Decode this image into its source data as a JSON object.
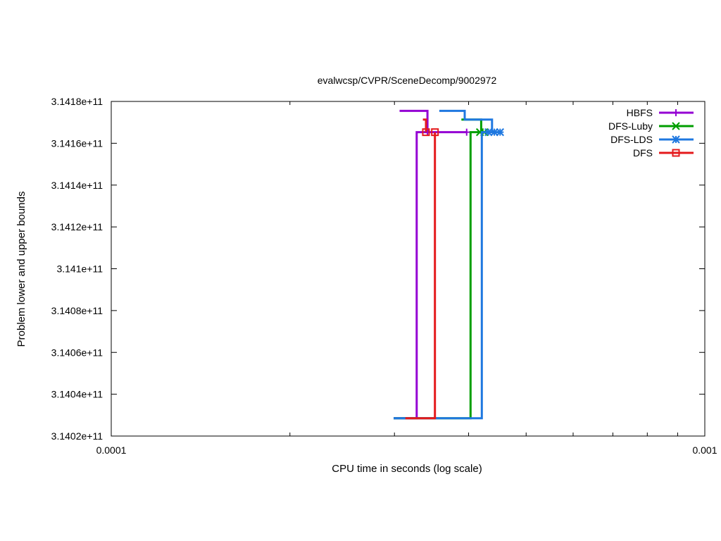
{
  "chart_data": {
    "type": "line",
    "title": "evalwcsp/CVPR/SceneDecomp/9002972",
    "xlabel": "CPU time in seconds (log scale)",
    "ylabel": "Problem lower and upper bounds",
    "xscale": "log",
    "xlim": [
      0.0001,
      0.001
    ],
    "ylim": [
      314020000000,
      314180000000
    ],
    "x_tick_labels": [
      "0.0001",
      "0.001"
    ],
    "x_ticks": [
      0.0001,
      0.001
    ],
    "y_ticks": [
      314020000000,
      314040000000,
      314060000000,
      314080000000,
      314100000000,
      314120000000,
      314140000000,
      314160000000,
      314180000000
    ],
    "y_tick_labels": [
      "3.1402e+11",
      "3.1404e+11",
      "3.1406e+11",
      "3.1408e+11",
      "3.141e+11",
      "3.1412e+11",
      "3.1414e+11",
      "3.1416e+11",
      "3.1418e+11"
    ],
    "grid": false,
    "legend_position": "top-right",
    "series": [
      {
        "name": "HBFS",
        "color": "#9400d3",
        "marker": "plus",
        "upper": [
          [
            0.000306,
            314175500000
          ],
          [
            0.000341,
            314175500000
          ],
          [
            0.000341,
            314165300000
          ]
        ],
        "lower": [
          [
            0.000299,
            314028500000
          ],
          [
            0.000327,
            314028500000
          ],
          [
            0.000327,
            314165300000
          ],
          [
            0.000397,
            314165300000
          ]
        ],
        "markers": [
          [
            0.000341,
            314165300000
          ],
          [
            0.000397,
            314165300000
          ]
        ]
      },
      {
        "name": "DFS-Luby",
        "color": "#009e00",
        "marker": "x",
        "upper": [
          [
            0.000389,
            314171300000
          ],
          [
            0.00042,
            314171300000
          ],
          [
            0.00042,
            314165300000
          ]
        ],
        "lower": [
          [
            0.000299,
            314028500000
          ],
          [
            0.000403,
            314028500000
          ],
          [
            0.000403,
            314165300000
          ],
          [
            0.000425,
            314165300000
          ]
        ],
        "markers": [
          [
            0.000418,
            314165300000
          ],
          [
            0.000425,
            314165300000
          ]
        ]
      },
      {
        "name": "DFS-LDS",
        "color": "#1f78e0",
        "marker": "star",
        "upper": [
          [
            0.000357,
            314175500000
          ],
          [
            0.000394,
            314175500000
          ],
          [
            0.000394,
            314171300000
          ],
          [
            0.000438,
            314171300000
          ],
          [
            0.000438,
            314165300000
          ]
        ],
        "lower": [
          [
            0.000299,
            314028500000
          ],
          [
            0.000421,
            314028500000
          ],
          [
            0.000421,
            314165300000
          ],
          [
            0.000452,
            314165300000
          ]
        ],
        "markers": [
          [
            0.000432,
            314165300000
          ],
          [
            0.000442,
            314165300000
          ],
          [
            0.000452,
            314165300000
          ]
        ]
      },
      {
        "name": "DFS",
        "color": "#e41a1c",
        "marker": "square",
        "upper": [
          [
            0.000335,
            314171300000
          ],
          [
            0.000339,
            314171300000
          ],
          [
            0.000339,
            314165300000
          ]
        ],
        "lower": [
          [
            0.000313,
            314028500000
          ],
          [
            0.000351,
            314028500000
          ],
          [
            0.000351,
            314165300000
          ]
        ],
        "markers": [
          [
            0.000339,
            314165300000
          ],
          [
            0.000351,
            314165300000
          ]
        ]
      }
    ]
  }
}
